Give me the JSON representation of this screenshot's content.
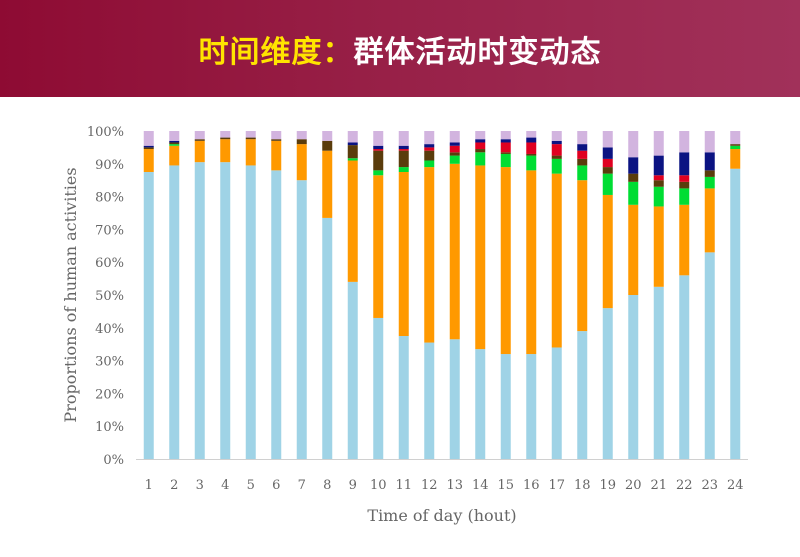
{
  "header": {
    "title_lead": "时间维度：",
    "title_rest": "群体活动时变动态"
  },
  "colors": {
    "header_start": "#8e0b33",
    "header_end": "#a1315a",
    "title_lead": "#ffe400",
    "title_rest": "#ffffff"
  },
  "chart_data": {
    "type": "bar",
    "stacked": true,
    "xlabel": "Time of day (hout)",
    "ylabel": "Proportions of human activities",
    "ylim": [
      0,
      100
    ],
    "yticks": [
      "0%",
      "10%",
      "20%",
      "30%",
      "40%",
      "50%",
      "60%",
      "70%",
      "80%",
      "90%",
      "100%"
    ],
    "grid": false,
    "categories": [
      "1",
      "2",
      "3",
      "4",
      "5",
      "6",
      "7",
      "8",
      "9",
      "10",
      "11",
      "12",
      "13",
      "14",
      "15",
      "16",
      "17",
      "18",
      "19",
      "20",
      "21",
      "22",
      "23",
      "24"
    ],
    "series": [
      {
        "color": "#9fd3e6",
        "values": [
          87.5,
          89.5,
          90.5,
          90.5,
          89.5,
          88,
          85,
          73.5,
          54,
          43,
          37.5,
          35.5,
          36.5,
          33.5,
          32,
          32,
          34,
          39,
          46,
          50,
          52.5,
          56,
          63,
          88.5
        ]
      },
      {
        "color": "#ff9900",
        "values": [
          7,
          6,
          6.5,
          7,
          8,
          9,
          11,
          20.5,
          37,
          43.5,
          50,
          53.5,
          53.5,
          56,
          57,
          56,
          53,
          46,
          34.5,
          27.5,
          24.5,
          21.5,
          19.5,
          6
        ]
      },
      {
        "color": "#00dd33",
        "values": [
          0,
          0.5,
          0,
          0,
          0,
          0,
          0,
          0,
          0.7,
          1.5,
          1.5,
          2,
          2.5,
          4,
          4,
          4.5,
          4.5,
          4.5,
          6.5,
          7,
          6,
          5,
          3.5,
          1
        ]
      },
      {
        "color": "#5a3c0c",
        "values": [
          0.5,
          0.5,
          0.5,
          0.5,
          0.5,
          0.5,
          1.5,
          3,
          4,
          6,
          5,
          3,
          1,
          1,
          0.5,
          0.5,
          1,
          2,
          2,
          2.5,
          2,
          2,
          2,
          0.5
        ]
      },
      {
        "color": "#e00020",
        "values": [
          0,
          0,
          0,
          0,
          0,
          0,
          0,
          0,
          0,
          0.5,
          0.5,
          1,
          2,
          2,
          3,
          3.5,
          3.5,
          2.5,
          2.5,
          0,
          1.5,
          2,
          0,
          0
        ]
      },
      {
        "color": "#0b1382",
        "values": [
          0.5,
          0.5,
          0,
          0,
          0,
          0,
          0,
          0,
          0.8,
          1,
          1,
          1,
          1,
          1,
          1,
          1.5,
          1,
          2,
          3.5,
          5,
          6,
          7,
          5.5,
          0
        ]
      },
      {
        "color": "#d2b4df",
        "values": [
          4.5,
          3,
          2.5,
          2,
          2,
          2.5,
          2.5,
          3,
          3.5,
          4.5,
          4.5,
          4,
          3.5,
          2.5,
          2.5,
          2,
          3,
          4,
          5,
          8,
          7.5,
          6.5,
          6.5,
          4
        ]
      }
    ]
  }
}
